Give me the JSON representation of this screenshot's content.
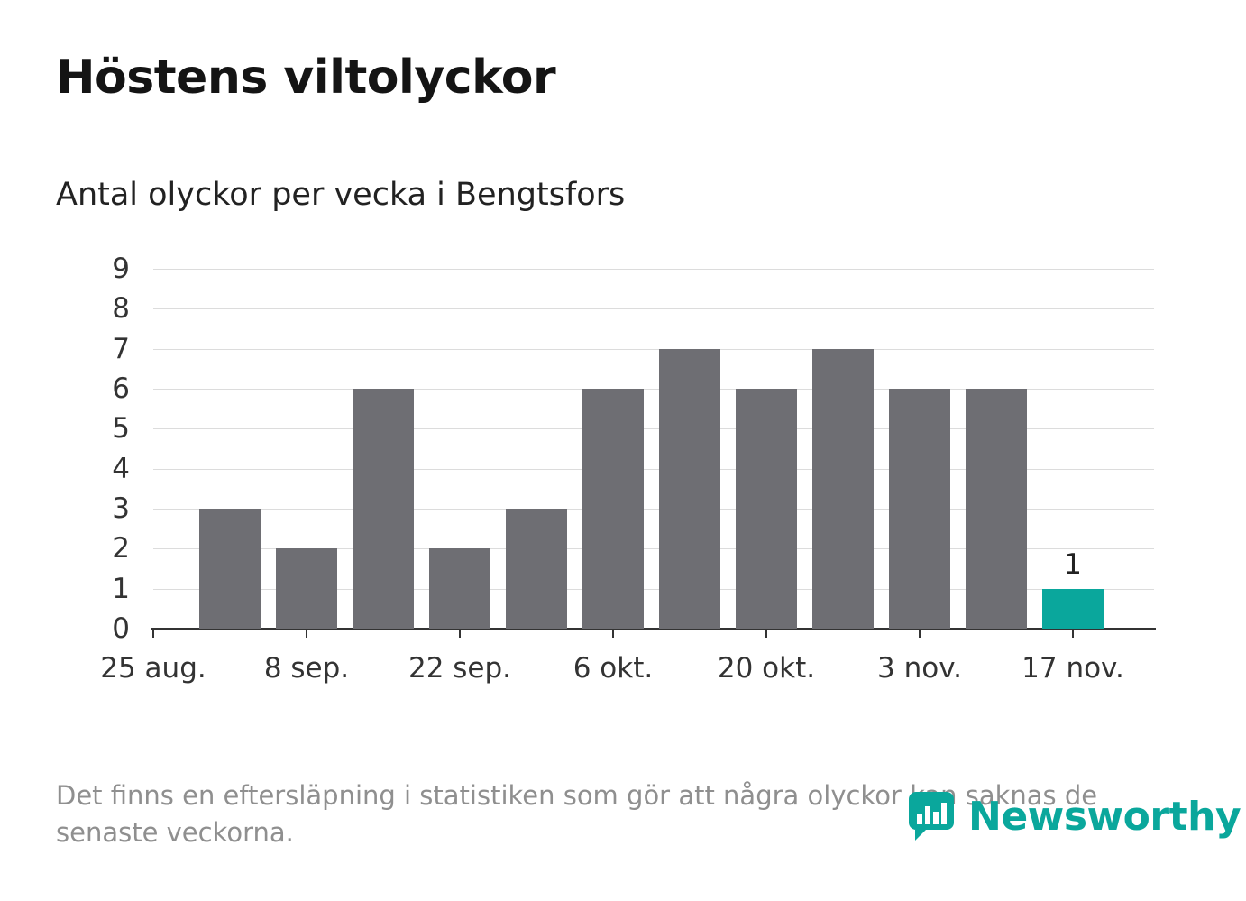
{
  "page": {
    "title": "Höstens viltolyckor",
    "subtitle": "Antal olyckor per vecka i Bengtsfors",
    "footer": "Det finns en eftersläpning i statistiken som gör att några olyckor kan saknas de senaste veckorna.",
    "brand": {
      "name": "Newsworthy",
      "color": "#0aa79c"
    }
  },
  "chart_data": {
    "type": "bar",
    "title": "Antal olyckor per vecka i Bengtsfors",
    "values": [
      3,
      2,
      6,
      2,
      3,
      6,
      7,
      6,
      7,
      6,
      6,
      1
    ],
    "bar_week_offsets": [
      1,
      2,
      3,
      4,
      5,
      6,
      7,
      8,
      9,
      10,
      11,
      12
    ],
    "highlight_index": 11,
    "highlight_value_label": "1",
    "bar_color": "#6e6e73",
    "highlight_color": "#0aa79c",
    "ylim": [
      0,
      9
    ],
    "yticks": [
      0,
      1,
      2,
      3,
      4,
      5,
      6,
      7,
      8,
      9
    ],
    "xtick_labels": [
      "25 aug.",
      "8 sep.",
      "22 sep.",
      "6 okt.",
      "20 okt.",
      "3 nov.",
      "17 nov."
    ],
    "xtick_week_offsets": [
      0,
      2,
      4,
      6,
      8,
      10,
      12
    ],
    "grid": true,
    "legend": "none"
  }
}
